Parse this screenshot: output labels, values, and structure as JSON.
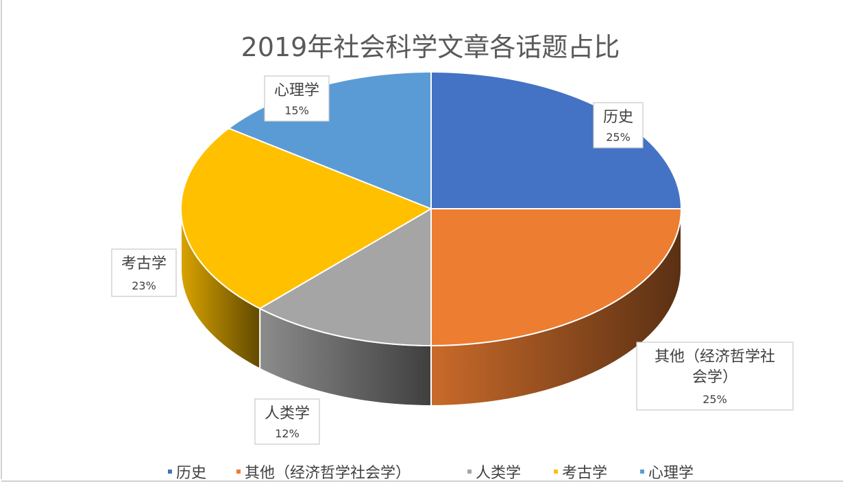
{
  "chart_data": {
    "type": "pie",
    "title": "2019年社会科学文章各话题占比",
    "categories": [
      "历史",
      "其他（经济哲学社会学）",
      "人类学",
      "考古学",
      "心理学"
    ],
    "values": [
      25,
      25,
      12,
      23,
      15
    ],
    "value_labels": [
      "25%",
      "25%",
      "12%",
      "23%",
      "15%"
    ],
    "label_lines": [
      [
        "历史"
      ],
      [
        "其他（经济哲学社",
        "会学）"
      ],
      [
        "人类学"
      ],
      [
        "考古学"
      ],
      [
        "心理学"
      ]
    ],
    "colors": [
      "#4472C4",
      "#ED7D31",
      "#A5A5A5",
      "#FFC000",
      "#5B9BD5"
    ],
    "legend_placement": "bottom",
    "three_d": true,
    "legend": [
      "历史",
      "其他（经济哲学社会学）",
      "人类学",
      "考古学",
      "心理学"
    ]
  }
}
